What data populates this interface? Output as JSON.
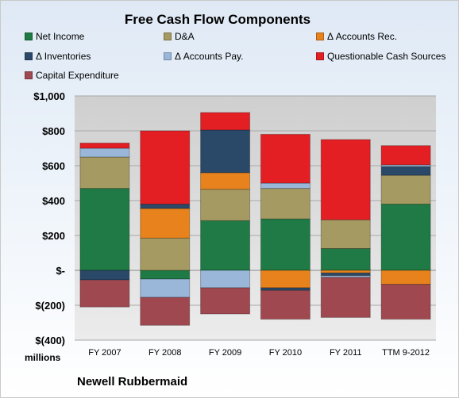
{
  "chart_data": {
    "type": "bar",
    "stacked": true,
    "title": "Free Cash Flow Components",
    "units_label": "millions",
    "footer": "Newell Rubbermaid",
    "categories": [
      "FY 2007",
      "FY 2008",
      "FY 2009",
      "FY 2010",
      "FY 2011",
      "TTM 9-2012"
    ],
    "ylim": [
      -400,
      1000
    ],
    "ytick_values": [
      -400,
      -200,
      0,
      200,
      400,
      600,
      800,
      1000
    ],
    "ytick_labels": [
      "$(400)",
      "$(200)",
      "$-",
      "$200",
      "$400",
      "$600",
      "$800",
      "$1,000"
    ],
    "grid": true,
    "legend_position": "top",
    "series": [
      {
        "name": "Net Income",
        "color": "#1f7a45",
        "values": [
          470,
          -50,
          285,
          295,
          125,
          380
        ]
      },
      {
        "name": "D&A",
        "color": "#a59a62",
        "values": [
          180,
          185,
          180,
          175,
          165,
          165
        ]
      },
      {
        "name": "Δ Accounts Rec.",
        "color": "#e8821c",
        "values": [
          0,
          170,
          95,
          -100,
          -15,
          -80
        ]
      },
      {
        "name": "Δ Inventories",
        "color": "#2a4868",
        "values": [
          -55,
          25,
          245,
          -15,
          -15,
          50
        ]
      },
      {
        "name": "Δ Accounts Pay.",
        "color": "#9ab7d9",
        "values": [
          50,
          -105,
          -100,
          30,
          -10,
          10
        ]
      },
      {
        "name": "Questionable Cash Sources",
        "color": "#e31f24",
        "values": [
          30,
          420,
          100,
          280,
          460,
          110
        ]
      },
      {
        "name": "Capital Expenditure",
        "color": "#a04850",
        "values": [
          -155,
          -160,
          -150,
          -165,
          -230,
          -200
        ]
      }
    ]
  }
}
